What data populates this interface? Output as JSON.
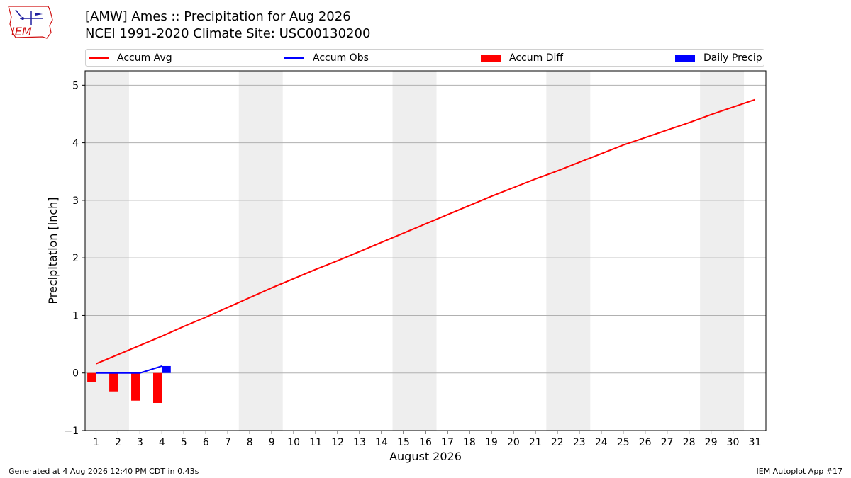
{
  "header": {
    "title_line1": "[AMW] Ames :: Precipitation for Aug 2026",
    "title_line2": "NCEI 1991-2020 Climate Site: USC00130200",
    "logo_text": "IEM"
  },
  "footer": {
    "generated": "Generated at 4 Aug 2026 12:40 PM CDT in 0.43s",
    "app": "IEM Autoplot App #17"
  },
  "legend": [
    {
      "label": "Accum Avg",
      "color": "#ff0000",
      "kind": "line"
    },
    {
      "label": "Accum Obs",
      "color": "#0000ff",
      "kind": "line"
    },
    {
      "label": "Accum Diff",
      "color": "#ff0000",
      "kind": "bar"
    },
    {
      "label": "Daily Precip",
      "color": "#0000ff",
      "kind": "bar"
    }
  ],
  "chart_data": {
    "type": "bar",
    "xlabel": "August 2026",
    "ylabel": "Precipitation [inch]",
    "xlim": [
      0.5,
      31.5
    ],
    "ylim": [
      -1.0,
      5.25
    ],
    "x_ticks": [
      1,
      2,
      3,
      4,
      5,
      6,
      7,
      8,
      9,
      10,
      11,
      12,
      13,
      14,
      15,
      16,
      17,
      18,
      19,
      20,
      21,
      22,
      23,
      24,
      25,
      26,
      27,
      28,
      29,
      30,
      31
    ],
    "y_ticks": [
      -1,
      0,
      1,
      2,
      3,
      4,
      5
    ],
    "grid": "horizontal",
    "legend_position": "top",
    "weekend_shading": [
      [
        0.5,
        2.5
      ],
      [
        7.5,
        9.5
      ],
      [
        14.5,
        16.5
      ],
      [
        21.5,
        23.5
      ],
      [
        28.5,
        30.5
      ]
    ],
    "series": [
      {
        "name": "Accum Avg",
        "type": "line",
        "color": "#ff0000",
        "x": [
          1,
          2,
          3,
          4,
          5,
          6,
          7,
          8,
          9,
          10,
          11,
          12,
          13,
          14,
          15,
          16,
          17,
          18,
          19,
          20,
          21,
          22,
          23,
          24,
          25,
          26,
          27,
          28,
          29,
          30,
          31
        ],
        "values": [
          0.16,
          0.32,
          0.48,
          0.64,
          0.81,
          0.97,
          1.14,
          1.31,
          1.48,
          1.64,
          1.8,
          1.95,
          2.11,
          2.27,
          2.43,
          2.59,
          2.75,
          2.91,
          3.07,
          3.22,
          3.37,
          3.51,
          3.66,
          3.81,
          3.96,
          4.09,
          4.22,
          4.35,
          4.49,
          4.62,
          4.75
        ]
      },
      {
        "name": "Accum Obs",
        "type": "line",
        "color": "#0000ff",
        "x": [
          1,
          2,
          3,
          4
        ],
        "values": [
          0.0,
          0.0,
          0.0,
          0.12
        ]
      },
      {
        "name": "Accum Diff",
        "type": "bar",
        "color": "#ff0000",
        "x": [
          1,
          2,
          3,
          4
        ],
        "values": [
          -0.16,
          -0.32,
          -0.48,
          -0.52
        ]
      },
      {
        "name": "Daily Precip",
        "type": "bar",
        "color": "#0000ff",
        "x": [
          1,
          2,
          3,
          4
        ],
        "values": [
          0.0,
          0.0,
          0.0,
          0.12
        ]
      }
    ]
  }
}
